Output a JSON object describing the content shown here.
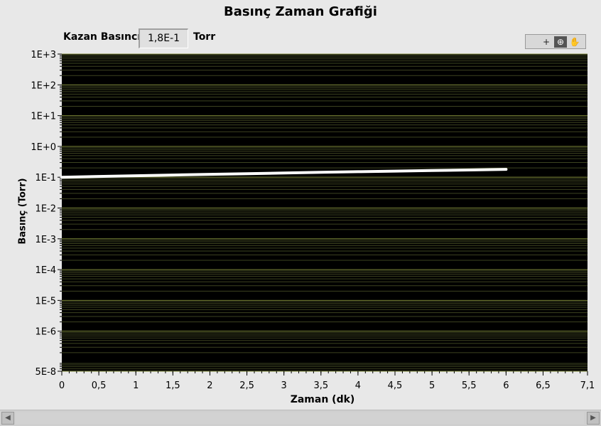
{
  "window": {
    "title": "Basınç Zaman Grafiği"
  },
  "digital_display": {
    "label": "Kazan Basıncı",
    "value": "1,8E-1",
    "unit": "Torr"
  },
  "palette": {
    "icons": [
      "crosshair-icon",
      "zoom-icon",
      "pan-hand-icon"
    ]
  },
  "scrollbar": {
    "left_arrow": "◀",
    "right_arrow": "▶"
  },
  "chart_data": {
    "type": "line",
    "title": "",
    "xlabel": "Zaman (dk)",
    "ylabel": "Basınç (Torr)",
    "xlim": [
      0,
      7.1
    ],
    "ylim": [
      5e-08,
      1000
    ],
    "yscale": "log",
    "grid": true,
    "x_tick_labels": [
      "0",
      "0,5",
      "1",
      "1,5",
      "2",
      "2,5",
      "3",
      "3,5",
      "4",
      "4,5",
      "5",
      "5,5",
      "6",
      "6,5",
      "7,1"
    ],
    "x_tick_values": [
      0,
      0.5,
      1,
      1.5,
      2,
      2.5,
      3,
      3.5,
      4,
      4.5,
      5,
      5.5,
      6,
      6.5,
      7.1
    ],
    "y_tick_labels": [
      "5E-8",
      "1E-6",
      "1E-5",
      "1E-4",
      "1E-3",
      "1E-2",
      "1E-1",
      "1E+0",
      "1E+1",
      "1E+2",
      "1E+3"
    ],
    "y_tick_values": [
      5e-08,
      1e-06,
      1e-05,
      0.0001,
      0.001,
      0.01,
      0.1,
      1,
      10,
      100,
      1000
    ],
    "colors": {
      "background": "#000000",
      "grid": "#7f8a3a",
      "minor_grid": "#3d4320",
      "line": "#ffffff"
    },
    "series": [
      {
        "x": [
          0,
          0.5,
          1,
          1.5,
          2,
          2.5,
          3,
          3.5,
          4,
          4.5,
          5,
          5.5,
          6
        ],
        "y": [
          0.1,
          0.106,
          0.112,
          0.118,
          0.124,
          0.13,
          0.137,
          0.144,
          0.151,
          0.158,
          0.165,
          0.172,
          0.18
        ]
      }
    ]
  }
}
